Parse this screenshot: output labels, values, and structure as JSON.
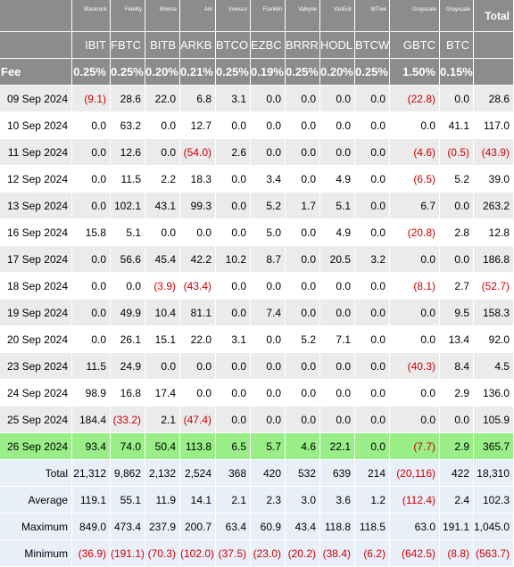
{
  "header": {
    "issuers": [
      "Blackrock",
      "Fidelity",
      "Bitwise",
      "Ark",
      "Invesco",
      "Franklin",
      "Valkyrie",
      "VanEck",
      "WTree",
      "Grayscale",
      "Grayscale"
    ],
    "total_label": "Total",
    "tickers": [
      "IBIT",
      "FBTC",
      "BITB",
      "ARKB",
      "BTCO",
      "EZBC",
      "BRRR",
      "HODL",
      "BTCW",
      "GBTC",
      "BTC"
    ],
    "fee_label": "Fee",
    "fees": [
      "0.25%",
      "0.25%",
      "0.20%",
      "0.21%",
      "0.25%",
      "0.19%",
      "0.25%",
      "0.20%",
      "0.25%",
      "1.50%",
      "0.15%"
    ]
  },
  "rows": [
    {
      "date": "09 Sep 2024",
      "values": [
        "(9.1)",
        "28.6",
        "22.0",
        "6.8",
        "3.1",
        "0.0",
        "0.0",
        "0.0",
        "0.0",
        "(22.8)",
        "0.0"
      ],
      "total": "28.6"
    },
    {
      "date": "10 Sep 2024",
      "values": [
        "0.0",
        "63.2",
        "0.0",
        "12.7",
        "0.0",
        "0.0",
        "0.0",
        "0.0",
        "0.0",
        "0.0",
        "41.1"
      ],
      "total": "117.0"
    },
    {
      "date": "11 Sep 2024",
      "values": [
        "0.0",
        "12.6",
        "0.0",
        "(54.0)",
        "2.6",
        "0.0",
        "0.0",
        "0.0",
        "0.0",
        "(4.6)",
        "(0.5)"
      ],
      "total": "(43.9)"
    },
    {
      "date": "12 Sep 2024",
      "values": [
        "0.0",
        "11.5",
        "2.2",
        "18.3",
        "0.0",
        "3.4",
        "0.0",
        "4.9",
        "0.0",
        "(6.5)",
        "5.2"
      ],
      "total": "39.0"
    },
    {
      "date": "13 Sep 2024",
      "values": [
        "0.0",
        "102.1",
        "43.1",
        "99.3",
        "0.0",
        "5.2",
        "1.7",
        "5.1",
        "0.0",
        "6.7",
        "0.0"
      ],
      "total": "263.2"
    },
    {
      "date": "16 Sep 2024",
      "values": [
        "15.8",
        "5.1",
        "0.0",
        "0.0",
        "0.0",
        "5.0",
        "0.0",
        "4.9",
        "0.0",
        "(20.8)",
        "2.8"
      ],
      "total": "12.8"
    },
    {
      "date": "17 Sep 2024",
      "values": [
        "0.0",
        "56.6",
        "45.4",
        "42.2",
        "10.2",
        "8.7",
        "0.0",
        "20.5",
        "3.2",
        "0.0",
        "0.0"
      ],
      "total": "186.8"
    },
    {
      "date": "18 Sep 2024",
      "values": [
        "0.0",
        "0.0",
        "(3.9)",
        "(43.4)",
        "0.0",
        "0.0",
        "0.0",
        "0.0",
        "0.0",
        "(8.1)",
        "2.7"
      ],
      "total": "(52.7)"
    },
    {
      "date": "19 Sep 2024",
      "values": [
        "0.0",
        "49.9",
        "10.4",
        "81.1",
        "0.0",
        "7.4",
        "0.0",
        "0.0",
        "0.0",
        "0.0",
        "9.5"
      ],
      "total": "158.3"
    },
    {
      "date": "20 Sep 2024",
      "values": [
        "0.0",
        "26.1",
        "15.1",
        "22.0",
        "3.1",
        "0.0",
        "5.2",
        "7.1",
        "0.0",
        "0.0",
        "13.4"
      ],
      "total": "92.0"
    },
    {
      "date": "23 Sep 2024",
      "values": [
        "11.5",
        "24.9",
        "0.0",
        "0.0",
        "0.0",
        "0.0",
        "0.0",
        "0.0",
        "0.0",
        "(40.3)",
        "8.4"
      ],
      "total": "4.5"
    },
    {
      "date": "24 Sep 2024",
      "values": [
        "98.9",
        "16.8",
        "17.4",
        "0.0",
        "0.0",
        "0.0",
        "0.0",
        "0.0",
        "0.0",
        "0.0",
        "2.9"
      ],
      "total": "136.0"
    },
    {
      "date": "25 Sep 2024",
      "values": [
        "184.4",
        "(33.2)",
        "2.1",
        "(47.4)",
        "0.0",
        "0.0",
        "0.0",
        "0.0",
        "0.0",
        "0.0",
        "0.0"
      ],
      "total": "105.9"
    },
    {
      "date": "26 Sep 2024",
      "values": [
        "93.4",
        "74.0",
        "50.4",
        "113.8",
        "6.5",
        "5.7",
        "4.6",
        "22.1",
        "0.0",
        "(7.7)",
        "2.9"
      ],
      "total": "365.7"
    }
  ],
  "summary": [
    {
      "label": "Total",
      "values": [
        "21,312",
        "9,862",
        "2,132",
        "2,524",
        "368",
        "420",
        "532",
        "639",
        "214",
        "(20,116)",
        "422"
      ],
      "total": "18,310"
    },
    {
      "label": "Average",
      "values": [
        "119.1",
        "55.1",
        "11.9",
        "14.1",
        "2.1",
        "2.3",
        "3.0",
        "3.6",
        "1.2",
        "(112.4)",
        "2.4"
      ],
      "total": "102.3"
    },
    {
      "label": "Maximum",
      "values": [
        "849.0",
        "473.4",
        "237.9",
        "200.7",
        "63.4",
        "60.9",
        "43.4",
        "118.8",
        "118.5",
        "63.0",
        "191.1"
      ],
      "total": "1,045.0"
    },
    {
      "label": "Minimum",
      "values": [
        "(36.9)",
        "(191.1)",
        "(70.3)",
        "(102.0)",
        "(37.5)",
        "(23.0)",
        "(20.2)",
        "(38.4)",
        "(6.2)",
        "(642.5)",
        "(8.8)"
      ],
      "total": "(563.7)"
    }
  ],
  "colors": {
    "header_bg": "#8c8c8c",
    "row_alt_bg": "#ebebeb",
    "highlight_bg": "#99ee88",
    "summary_bg": "#e9eff9",
    "negative": "#cc0000"
  }
}
